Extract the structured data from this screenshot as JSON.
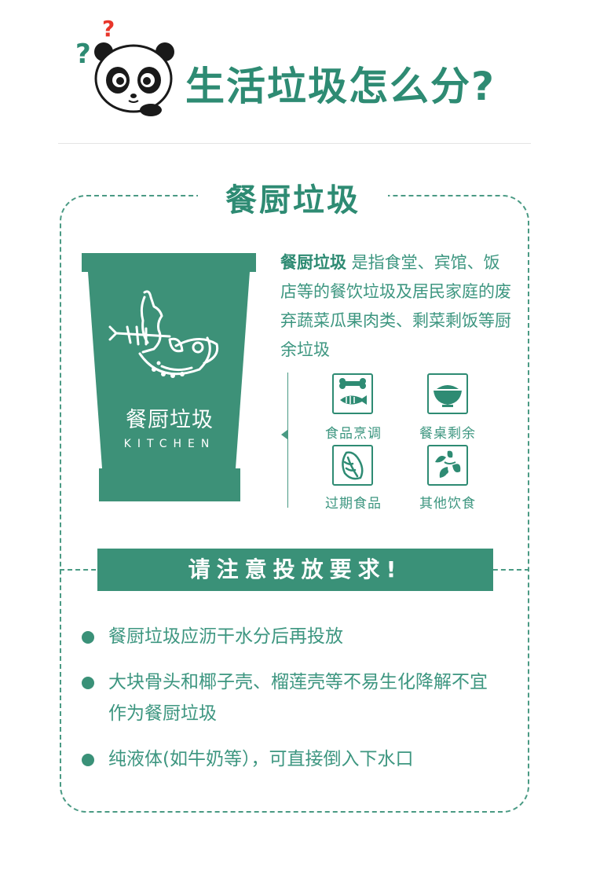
{
  "header": {
    "title": "生活垃圾怎么分?",
    "question_mark": "?"
  },
  "section": {
    "title": "餐厨垃圾"
  },
  "bin": {
    "label_cn": "餐厨垃圾",
    "label_en": "KITCHEN"
  },
  "description": {
    "term": "餐厨垃圾",
    "text": " 是指食堂、宾馆、饭店等的餐饮垃圾及居民家庭的废弃蔬菜瓜果肉类、剩菜剩饭等厨余垃圾"
  },
  "categories": [
    {
      "label": "食品烹调",
      "icon": "bone-fish-icon"
    },
    {
      "label": "餐桌剩余",
      "icon": "bowl-icon"
    },
    {
      "label": "过期食品",
      "icon": "cabbage-icon"
    },
    {
      "label": "其他饮食",
      "icon": "vegetables-icon"
    }
  ],
  "banner": {
    "text": "请注意投放要求!"
  },
  "rules": [
    "餐厨垃圾应沥干水分后再投放",
    "大块骨头和椰子壳、榴莲壳等不易生化降解不宜作为餐厨垃圾",
    "纯液体(如牛奶等），可直接倒入下水口"
  ],
  "colors": {
    "primary": "#2e8b73",
    "text": "#3d9680",
    "bin": "#3d9178",
    "accent_red": "#e8352a"
  }
}
